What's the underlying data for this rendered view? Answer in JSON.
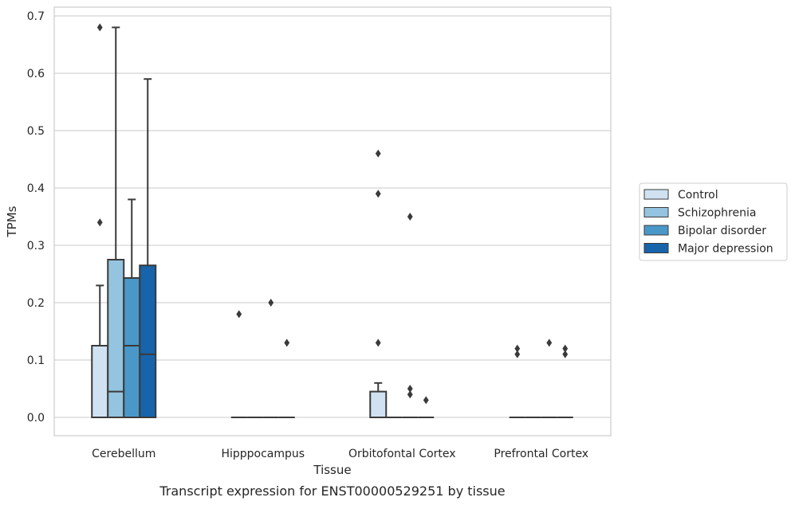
{
  "chart_data": {
    "type": "box",
    "xlabel": "Tissue",
    "ylabel": "TPMs",
    "caption": "Transcript expression for ENST00000529251 by tissue",
    "ylim": [
      -0.033,
      0.715
    ],
    "yticks": [
      "0.0",
      "0.1",
      "0.2",
      "0.3",
      "0.4",
      "0.5",
      "0.6",
      "0.7"
    ],
    "grid": "horizontal",
    "legend_position": "right",
    "categories": [
      "Cerebellum",
      "Hipppocampus",
      "Orbitofontal Cortex",
      "Prefrontal Cortex"
    ],
    "series": [
      {
        "name": "Control",
        "color": "#d0e1f2",
        "boxes": [
          {
            "q1": 0.0,
            "median": 0.0,
            "q3": 0.125,
            "whisker_low": 0.0,
            "whisker_high": 0.23,
            "outliers": [
              0.34,
              0.68
            ]
          },
          {
            "q1": 0.0,
            "median": 0.0,
            "q3": 0.0,
            "whisker_low": 0.0,
            "whisker_high": 0.0,
            "outliers": [
              0.18
            ]
          },
          {
            "q1": 0.0,
            "median": 0.0,
            "q3": 0.045,
            "whisker_low": 0.0,
            "whisker_high": 0.06,
            "outliers": [
              0.13,
              0.39,
              0.46
            ]
          },
          {
            "q1": 0.0,
            "median": 0.0,
            "q3": 0.0,
            "whisker_low": 0.0,
            "whisker_high": 0.0,
            "outliers": [
              0.11,
              0.12
            ]
          }
        ]
      },
      {
        "name": "Schizophrenia",
        "color": "#94c4df",
        "boxes": [
          {
            "q1": 0.0,
            "median": 0.045,
            "q3": 0.275,
            "whisker_low": 0.0,
            "whisker_high": 0.68,
            "outliers": []
          },
          {
            "q1": 0.0,
            "median": 0.0,
            "q3": 0.0,
            "whisker_low": 0.0,
            "whisker_high": 0.0,
            "outliers": []
          },
          {
            "q1": 0.0,
            "median": 0.0,
            "q3": 0.0,
            "whisker_low": 0.0,
            "whisker_high": 0.0,
            "outliers": []
          },
          {
            "q1": 0.0,
            "median": 0.0,
            "q3": 0.0,
            "whisker_low": 0.0,
            "whisker_high": 0.0,
            "outliers": []
          }
        ]
      },
      {
        "name": "Bipolar disorder",
        "color": "#4a98c9",
        "boxes": [
          {
            "q1": 0.0,
            "median": 0.125,
            "q3": 0.243,
            "whisker_low": 0.0,
            "whisker_high": 0.38,
            "outliers": []
          },
          {
            "q1": 0.0,
            "median": 0.0,
            "q3": 0.0,
            "whisker_low": 0.0,
            "whisker_high": 0.0,
            "outliers": [
              0.2
            ]
          },
          {
            "q1": 0.0,
            "median": 0.0,
            "q3": 0.0,
            "whisker_low": 0.0,
            "whisker_high": 0.0,
            "outliers": [
              0.04,
              0.05,
              0.35
            ]
          },
          {
            "q1": 0.0,
            "median": 0.0,
            "q3": 0.0,
            "whisker_low": 0.0,
            "whisker_high": 0.0,
            "outliers": [
              0.13
            ]
          }
        ]
      },
      {
        "name": "Major depression",
        "color": "#1764ab",
        "boxes": [
          {
            "q1": 0.0,
            "median": 0.11,
            "q3": 0.265,
            "whisker_low": 0.0,
            "whisker_high": 0.59,
            "outliers": []
          },
          {
            "q1": 0.0,
            "median": 0.0,
            "q3": 0.0,
            "whisker_low": 0.0,
            "whisker_high": 0.0,
            "outliers": [
              0.13
            ]
          },
          {
            "q1": 0.0,
            "median": 0.0,
            "q3": 0.0,
            "whisker_low": 0.0,
            "whisker_high": 0.0,
            "outliers": [
              0.03
            ]
          },
          {
            "q1": 0.0,
            "median": 0.0,
            "q3": 0.0,
            "whisker_low": 0.0,
            "whisker_high": 0.0,
            "outliers": [
              0.11,
              0.12
            ]
          }
        ]
      }
    ]
  }
}
